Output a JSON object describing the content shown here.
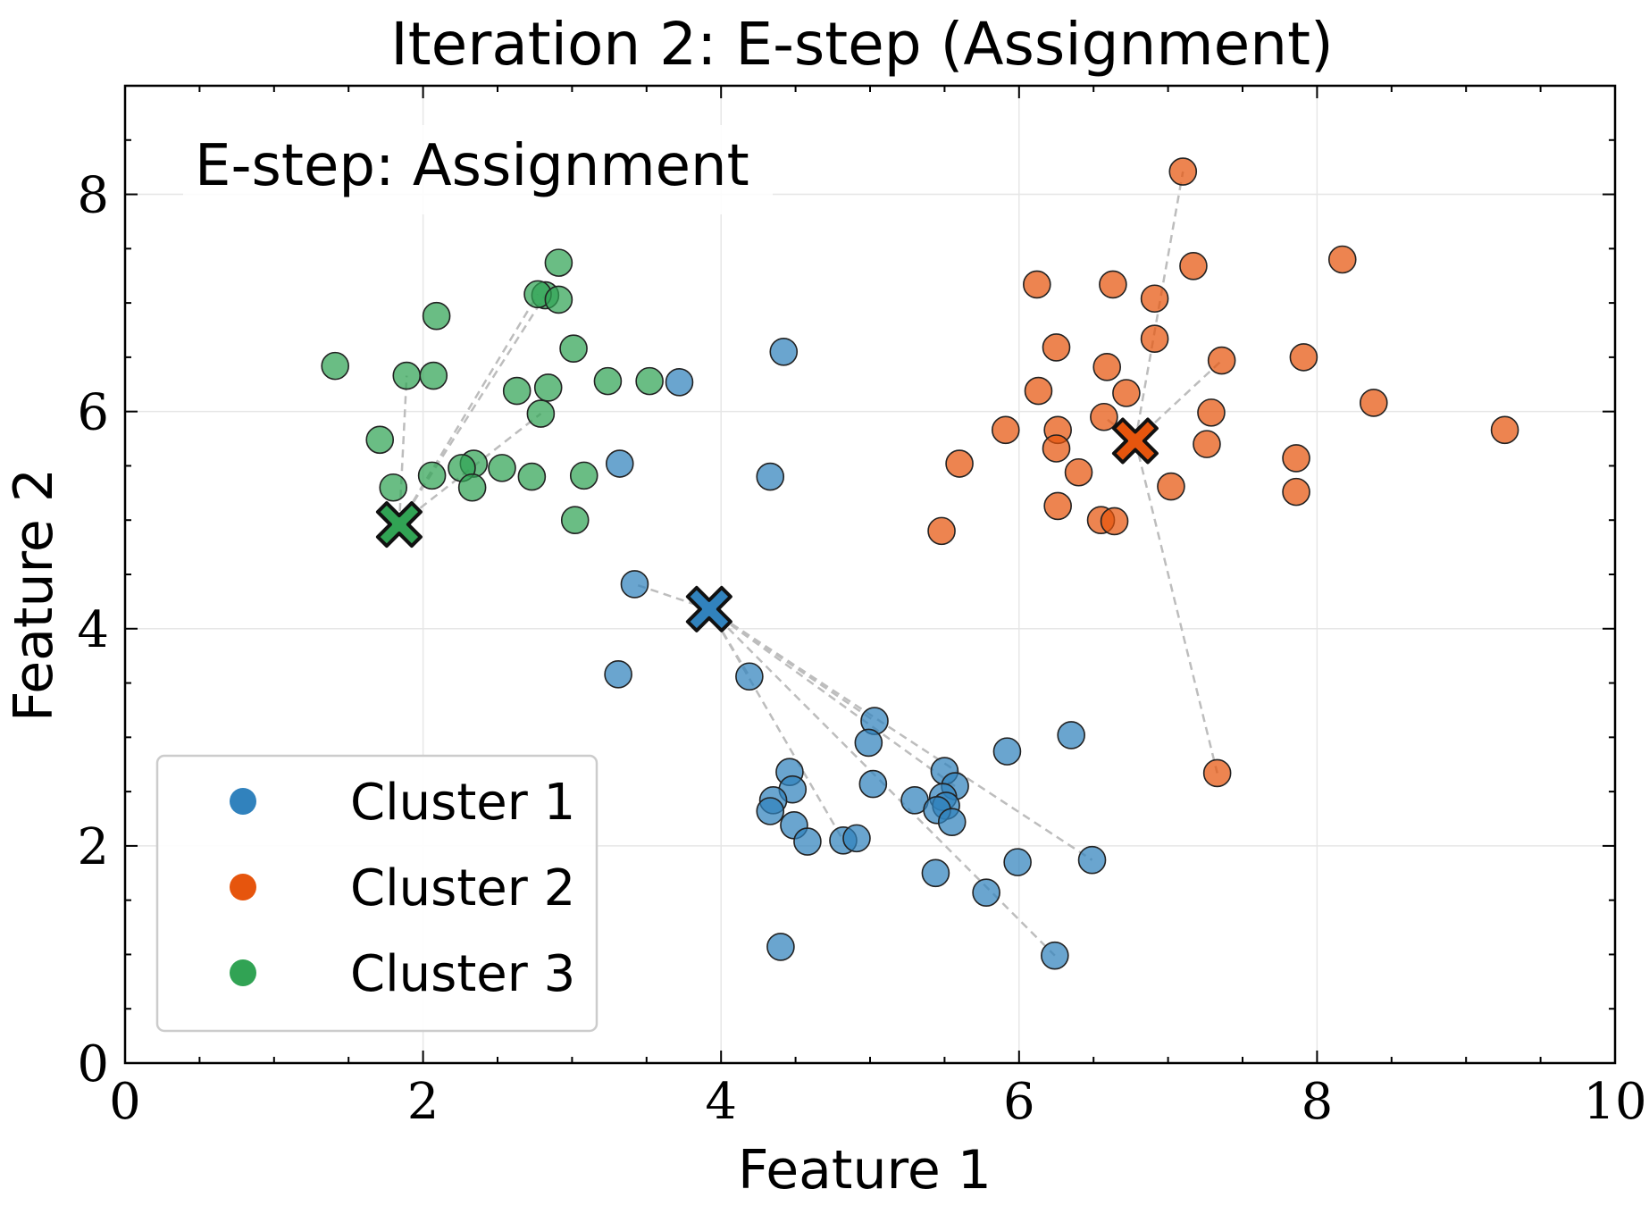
{
  "chart_data": {
    "type": "scatter",
    "title": "Iteration 2: E-step (Assignment)",
    "xlabel": "Feature 1",
    "ylabel": "Feature 2",
    "xlim": [
      0,
      10
    ],
    "ylim": [
      0,
      9
    ],
    "xticks": [
      0,
      2,
      4,
      6,
      8,
      10
    ],
    "yticks": [
      0,
      2,
      4,
      6,
      8
    ],
    "grid": true,
    "annotation": "E-step: Assignment",
    "legend_position": "lower-left",
    "series": [
      {
        "name": "Cluster 1",
        "color": "#3182bd",
        "centroid": [
          3.92,
          4.18
        ],
        "points": [
          [
            3.72,
            6.27
          ],
          [
            4.42,
            6.55
          ],
          [
            3.32,
            5.52
          ],
          [
            4.33,
            5.4
          ],
          [
            3.42,
            4.41
          ],
          [
            3.31,
            3.58
          ],
          [
            4.19,
            3.56
          ],
          [
            5.03,
            3.15
          ],
          [
            4.99,
            2.95
          ],
          [
            4.46,
            2.68
          ],
          [
            4.48,
            2.52
          ],
          [
            4.35,
            2.42
          ],
          [
            4.33,
            2.32
          ],
          [
            4.49,
            2.19
          ],
          [
            4.58,
            2.04
          ],
          [
            4.82,
            2.05
          ],
          [
            4.91,
            2.07
          ],
          [
            5.02,
            2.57
          ],
          [
            5.3,
            2.42
          ],
          [
            5.5,
            2.69
          ],
          [
            5.57,
            2.55
          ],
          [
            5.49,
            2.45
          ],
          [
            5.51,
            2.37
          ],
          [
            5.45,
            2.33
          ],
          [
            5.55,
            2.22
          ],
          [
            5.92,
            2.87
          ],
          [
            6.35,
            3.02
          ],
          [
            5.44,
            1.75
          ],
          [
            5.99,
            1.85
          ],
          [
            6.49,
            1.87
          ],
          [
            5.78,
            1.57
          ],
          [
            6.24,
            0.99
          ],
          [
            4.4,
            1.07
          ]
        ],
        "lines_to": [
          [
            3.42,
            4.41
          ],
          [
            4.19,
            3.56
          ],
          [
            5.03,
            3.15
          ],
          [
            4.82,
            2.05
          ],
          [
            5.57,
            2.55
          ],
          [
            6.49,
            1.87
          ],
          [
            6.24,
            0.99
          ]
        ]
      },
      {
        "name": "Cluster 2",
        "color": "#e6550d",
        "centroid": [
          6.78,
          5.73
        ],
        "points": [
          [
            7.1,
            8.21
          ],
          [
            7.17,
            7.34
          ],
          [
            8.17,
            7.4
          ],
          [
            6.12,
            7.17
          ],
          [
            6.63,
            7.17
          ],
          [
            6.91,
            7.04
          ],
          [
            6.91,
            6.67
          ],
          [
            6.25,
            6.59
          ],
          [
            6.59,
            6.41
          ],
          [
            7.36,
            6.47
          ],
          [
            7.91,
            6.5
          ],
          [
            6.13,
            6.19
          ],
          [
            6.72,
            6.17
          ],
          [
            8.38,
            6.08
          ],
          [
            7.29,
            5.99
          ],
          [
            6.57,
            5.95
          ],
          [
            5.91,
            5.83
          ],
          [
            6.26,
            5.83
          ],
          [
            9.26,
            5.83
          ],
          [
            6.25,
            5.66
          ],
          [
            7.26,
            5.7
          ],
          [
            7.86,
            5.57
          ],
          [
            5.6,
            5.52
          ],
          [
            6.4,
            5.44
          ],
          [
            7.02,
            5.31
          ],
          [
            7.86,
            5.26
          ],
          [
            6.26,
            5.13
          ],
          [
            6.55,
            5.0
          ],
          [
            6.64,
            4.99
          ],
          [
            5.48,
            4.9
          ],
          [
            7.33,
            2.67
          ]
        ],
        "lines_to": [
          [
            7.1,
            8.21
          ],
          [
            7.36,
            6.47
          ],
          [
            6.57,
            5.95
          ],
          [
            7.33,
            2.67
          ]
        ]
      },
      {
        "name": "Cluster 3",
        "color": "#31a354",
        "centroid": [
          1.84,
          4.96
        ],
        "points": [
          [
            2.91,
            7.37
          ],
          [
            2.82,
            7.07
          ],
          [
            2.77,
            7.08
          ],
          [
            2.91,
            7.03
          ],
          [
            2.09,
            6.88
          ],
          [
            3.01,
            6.58
          ],
          [
            1.41,
            6.42
          ],
          [
            1.89,
            6.33
          ],
          [
            2.07,
            6.33
          ],
          [
            3.24,
            6.28
          ],
          [
            3.52,
            6.28
          ],
          [
            2.63,
            6.19
          ],
          [
            2.84,
            6.22
          ],
          [
            2.79,
            5.98
          ],
          [
            1.71,
            5.74
          ],
          [
            2.34,
            5.52
          ],
          [
            2.26,
            5.48
          ],
          [
            2.53,
            5.48
          ],
          [
            2.06,
            5.41
          ],
          [
            2.73,
            5.4
          ],
          [
            3.08,
            5.41
          ],
          [
            1.8,
            5.3
          ],
          [
            2.33,
            5.3
          ],
          [
            3.02,
            5.0
          ]
        ],
        "lines_to": [
          [
            1.89,
            6.33
          ],
          [
            2.82,
            7.07
          ],
          [
            2.77,
            7.08
          ],
          [
            2.79,
            5.98
          ]
        ]
      }
    ]
  }
}
